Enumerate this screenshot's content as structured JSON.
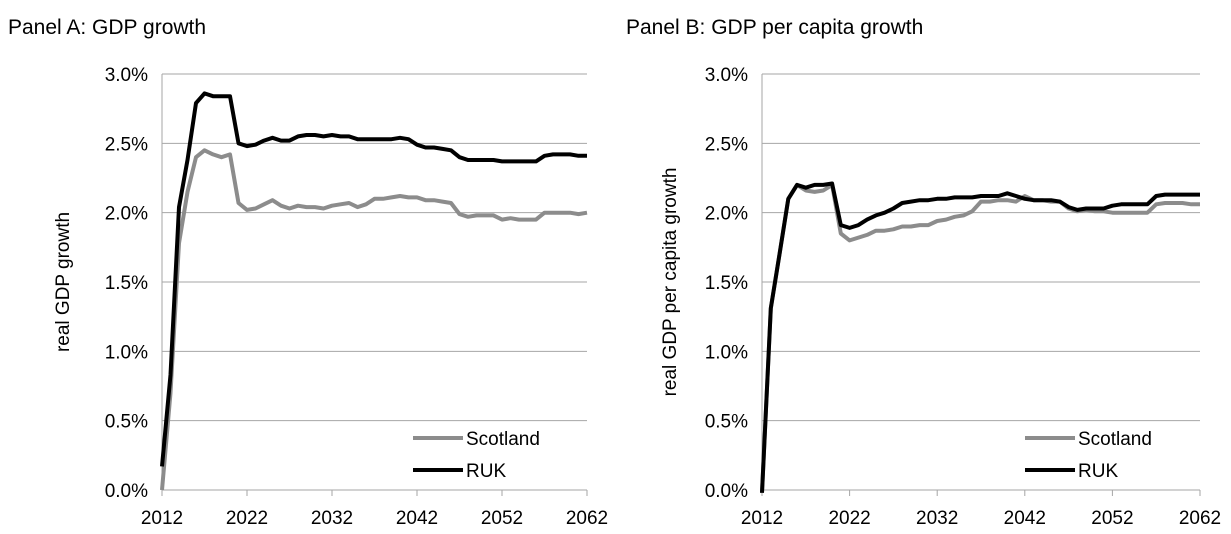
{
  "colors": {
    "scotland": "#8c8c8c",
    "ruk": "#000000",
    "grid": "#a6a6a6"
  },
  "chart_data": [
    {
      "type": "line",
      "title": "Panel A: GDP growth",
      "xlabel": "",
      "ylabel": "real GDP growth",
      "xlim": [
        2012,
        2062
      ],
      "ylim": [
        0,
        0.03
      ],
      "xticks": [
        2012,
        2022,
        2032,
        2042,
        2052,
        2062
      ],
      "yticks": [
        0,
        0.005,
        0.01,
        0.015,
        0.02,
        0.025,
        0.03
      ],
      "xtick_labels": [
        "2012",
        "2022",
        "2032",
        "2042",
        "2052",
        "2062"
      ],
      "ytick_labels": [
        "0.0%",
        "0.5%",
        "1.0%",
        "1.5%",
        "2.0%",
        "2.5%",
        "3.0%"
      ],
      "grid": "horizontal",
      "legend_position": "bottom-right",
      "series": [
        {
          "name": "Scotland",
          "x": [
            2012,
            2013,
            2014,
            2015,
            2016,
            2017,
            2018,
            2019,
            2020,
            2021,
            2022,
            2023,
            2024,
            2025,
            2026,
            2027,
            2028,
            2029,
            2030,
            2031,
            2032,
            2033,
            2034,
            2035,
            2036,
            2037,
            2038,
            2039,
            2040,
            2041,
            2042,
            2043,
            2044,
            2045,
            2046,
            2047,
            2048,
            2049,
            2050,
            2051,
            2052,
            2053,
            2054,
            2055,
            2056,
            2057,
            2058,
            2059,
            2060,
            2061,
            2062
          ],
          "values": [
            0.0,
            0.007,
            0.0178,
            0.0215,
            0.024,
            0.0245,
            0.0242,
            0.024,
            0.0242,
            0.0207,
            0.0202,
            0.0203,
            0.0206,
            0.0209,
            0.0205,
            0.0203,
            0.0205,
            0.0204,
            0.0204,
            0.0203,
            0.0205,
            0.0206,
            0.0207,
            0.0204,
            0.0206,
            0.021,
            0.021,
            0.0211,
            0.0212,
            0.0211,
            0.0211,
            0.0209,
            0.0209,
            0.0208,
            0.0207,
            0.0199,
            0.0197,
            0.0198,
            0.0198,
            0.0198,
            0.0195,
            0.0196,
            0.0195,
            0.0195,
            0.0195,
            0.02,
            0.02,
            0.02,
            0.02,
            0.0199,
            0.02
          ]
        },
        {
          "name": "RUK",
          "x": [
            2012,
            2013,
            2014,
            2015,
            2016,
            2017,
            2018,
            2019,
            2020,
            2021,
            2022,
            2023,
            2024,
            2025,
            2026,
            2027,
            2028,
            2029,
            2030,
            2031,
            2032,
            2033,
            2034,
            2035,
            2036,
            2037,
            2038,
            2039,
            2040,
            2041,
            2042,
            2043,
            2044,
            2045,
            2046,
            2047,
            2048,
            2049,
            2050,
            2051,
            2052,
            2053,
            2054,
            2055,
            2056,
            2057,
            2058,
            2059,
            2060,
            2061,
            2062
          ],
          "values": [
            0.0017,
            0.0083,
            0.0204,
            0.0238,
            0.0279,
            0.0286,
            0.0284,
            0.0284,
            0.0284,
            0.025,
            0.0248,
            0.0249,
            0.0252,
            0.0254,
            0.0252,
            0.0252,
            0.0255,
            0.0256,
            0.0256,
            0.0255,
            0.0256,
            0.0255,
            0.0255,
            0.0253,
            0.0253,
            0.0253,
            0.0253,
            0.0253,
            0.0254,
            0.0253,
            0.0249,
            0.0247,
            0.0247,
            0.0246,
            0.0245,
            0.024,
            0.0238,
            0.0238,
            0.0238,
            0.0238,
            0.0237,
            0.0237,
            0.0237,
            0.0237,
            0.0237,
            0.0241,
            0.0242,
            0.0242,
            0.0242,
            0.0241,
            0.0241
          ]
        }
      ]
    },
    {
      "type": "line",
      "title": "Panel B: GDP per capita growth",
      "xlabel": "",
      "ylabel": "real GDP per capita growth",
      "xlim": [
        2012,
        2062
      ],
      "ylim": [
        0,
        0.03
      ],
      "xticks": [
        2012,
        2022,
        2032,
        2042,
        2052,
        2062
      ],
      "yticks": [
        0,
        0.005,
        0.01,
        0.015,
        0.02,
        0.025,
        0.03
      ],
      "xtick_labels": [
        "2012",
        "2022",
        "2032",
        "2042",
        "2052",
        "2062"
      ],
      "ytick_labels": [
        "0.0%",
        "0.5%",
        "1.0%",
        "1.5%",
        "2.0%",
        "2.5%",
        "3.0%"
      ],
      "grid": "horizontal",
      "legend_position": "bottom-right",
      "series": [
        {
          "name": "Scotland",
          "x": [
            2012,
            2013,
            2014,
            2015,
            2016,
            2017,
            2018,
            2019,
            2020,
            2021,
            2022,
            2023,
            2024,
            2025,
            2026,
            2027,
            2028,
            2029,
            2030,
            2031,
            2032,
            2033,
            2034,
            2035,
            2036,
            2037,
            2038,
            2039,
            2040,
            2041,
            2042,
            2043,
            2044,
            2045,
            2046,
            2047,
            2048,
            2049,
            2050,
            2051,
            2052,
            2053,
            2054,
            2055,
            2056,
            2057,
            2058,
            2059,
            2060,
            2061,
            2062
          ],
          "values": [
            -0.0002,
            0.0131,
            0.017,
            0.021,
            0.022,
            0.0216,
            0.0215,
            0.0216,
            0.022,
            0.0185,
            0.018,
            0.0182,
            0.0184,
            0.0187,
            0.0187,
            0.0188,
            0.019,
            0.019,
            0.0191,
            0.0191,
            0.0194,
            0.0195,
            0.0197,
            0.0198,
            0.0201,
            0.0208,
            0.0208,
            0.0209,
            0.0209,
            0.0208,
            0.0212,
            0.0209,
            0.0209,
            0.0208,
            0.0208,
            0.0203,
            0.0201,
            0.0202,
            0.0201,
            0.0201,
            0.02,
            0.02,
            0.02,
            0.02,
            0.02,
            0.0206,
            0.0207,
            0.0207,
            0.0207,
            0.0206,
            0.0206
          ]
        },
        {
          "name": "RUK",
          "x": [
            2012,
            2013,
            2014,
            2015,
            2016,
            2017,
            2018,
            2019,
            2020,
            2021,
            2022,
            2023,
            2024,
            2025,
            2026,
            2027,
            2028,
            2029,
            2030,
            2031,
            2032,
            2033,
            2034,
            2035,
            2036,
            2037,
            2038,
            2039,
            2040,
            2041,
            2042,
            2043,
            2044,
            2045,
            2046,
            2047,
            2048,
            2049,
            2050,
            2051,
            2052,
            2053,
            2054,
            2055,
            2056,
            2057,
            2058,
            2059,
            2060,
            2061,
            2062
          ],
          "values": [
            -0.0002,
            0.0131,
            0.017,
            0.021,
            0.022,
            0.0218,
            0.022,
            0.022,
            0.0221,
            0.0191,
            0.0189,
            0.0191,
            0.0195,
            0.0198,
            0.02,
            0.0203,
            0.0207,
            0.0208,
            0.0209,
            0.0209,
            0.021,
            0.021,
            0.0211,
            0.0211,
            0.0211,
            0.0212,
            0.0212,
            0.0212,
            0.0214,
            0.0212,
            0.021,
            0.0209,
            0.0209,
            0.0209,
            0.0208,
            0.0204,
            0.0202,
            0.0203,
            0.0203,
            0.0203,
            0.0205,
            0.0206,
            0.0206,
            0.0206,
            0.0206,
            0.0212,
            0.0213,
            0.0213,
            0.0213,
            0.0213,
            0.0213
          ]
        }
      ]
    }
  ]
}
